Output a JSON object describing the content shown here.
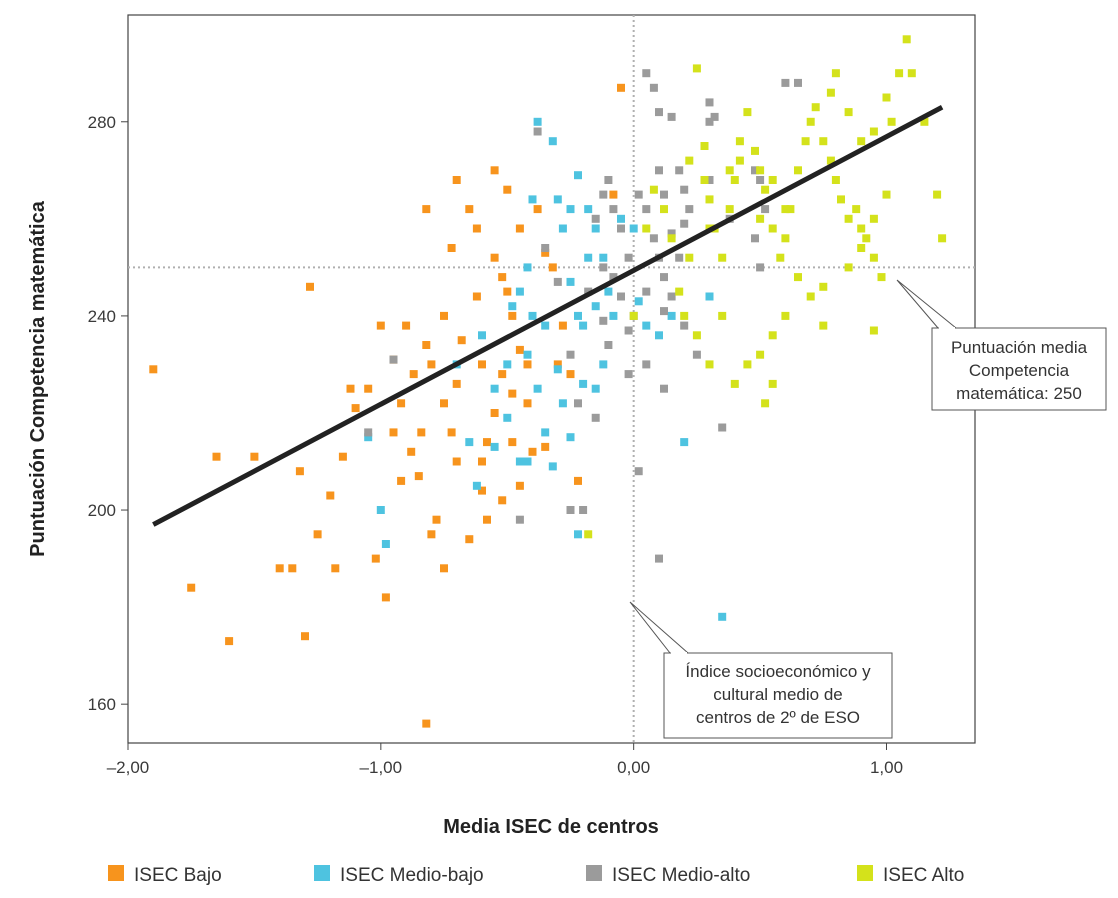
{
  "chart_data": {
    "type": "scatter",
    "xlabel": "Media ISEC de centros",
    "ylabel": "Puntuación Competencia matemática",
    "xlim": [
      -2.0,
      1.35
    ],
    "ylim": [
      152,
      302
    ],
    "x_ticks": [
      -2.0,
      -1.0,
      0.0,
      1.0
    ],
    "x_tick_labels": [
      "–2,00",
      "–1,00",
      "0,00",
      "1,00"
    ],
    "y_ticks": [
      160,
      200,
      240,
      280
    ],
    "y_tick_labels": [
      "160",
      "200",
      "240",
      "280"
    ],
    "grid": false,
    "reference_lines": {
      "x": 0.0,
      "y": 250,
      "color": "#b0b0b0",
      "style": "dotted"
    },
    "regression_line": {
      "x": [
        -1.9,
        1.22
      ],
      "y": [
        197,
        283
      ],
      "color": "#222222"
    },
    "annotations": [
      {
        "lines": [
          "Puntuación media",
          "Competencia",
          "matemática: 250"
        ],
        "points_to": [
          1.05,
          250
        ]
      },
      {
        "lines": [
          "Índice socioeconómico y",
          "cultural medio de",
          "centros de 2º de ESO"
        ],
        "points_to": [
          0.0,
          183
        ]
      }
    ],
    "legend_position": "bottom",
    "series": [
      {
        "name": "ISEC Bajo",
        "color": "#F7941D",
        "points": [
          [
            -1.9,
            229
          ],
          [
            -1.75,
            184
          ],
          [
            -1.6,
            173
          ],
          [
            -1.65,
            211
          ],
          [
            -1.5,
            211
          ],
          [
            -1.3,
            174
          ],
          [
            -1.35,
            188
          ],
          [
            -1.4,
            188
          ],
          [
            -1.28,
            246
          ],
          [
            -1.32,
            208
          ],
          [
            -1.2,
            203
          ],
          [
            -1.15,
            211
          ],
          [
            -1.1,
            221
          ],
          [
            -1.12,
            225
          ],
          [
            -1.05,
            225
          ],
          [
            -1.0,
            238
          ],
          [
            -0.95,
            231
          ],
          [
            -0.9,
            238
          ],
          [
            -0.87,
            228
          ],
          [
            -0.82,
            234
          ],
          [
            -0.8,
            230
          ],
          [
            -0.84,
            216
          ],
          [
            -0.88,
            212
          ],
          [
            -0.92,
            222
          ],
          [
            -0.95,
            216
          ],
          [
            -0.98,
            182
          ],
          [
            -1.02,
            190
          ],
          [
            -0.85,
            207
          ],
          [
            -0.82,
            262
          ],
          [
            -0.75,
            240
          ],
          [
            -0.72,
            254
          ],
          [
            -0.7,
            268
          ],
          [
            -0.65,
            262
          ],
          [
            -0.62,
            258
          ],
          [
            -0.68,
            235
          ],
          [
            -0.7,
            226
          ],
          [
            -0.72,
            216
          ],
          [
            -0.75,
            222
          ],
          [
            -0.78,
            198
          ],
          [
            -0.75,
            188
          ],
          [
            -0.8,
            195
          ],
          [
            -0.7,
            210
          ],
          [
            -0.65,
            194
          ],
          [
            -0.55,
            270
          ],
          [
            -0.5,
            266
          ],
          [
            -0.55,
            252
          ],
          [
            -0.52,
            248
          ],
          [
            -0.5,
            245
          ],
          [
            -0.48,
            240
          ],
          [
            -0.45,
            233
          ],
          [
            -0.52,
            228
          ],
          [
            -0.55,
            220
          ],
          [
            -0.58,
            214
          ],
          [
            -0.6,
            210
          ],
          [
            -0.48,
            224
          ],
          [
            -0.42,
            222
          ],
          [
            -0.4,
            212
          ],
          [
            -0.45,
            258
          ],
          [
            -0.38,
            262
          ],
          [
            -0.35,
            253
          ],
          [
            -0.32,
            250
          ],
          [
            -0.28,
            238
          ],
          [
            -0.3,
            230
          ],
          [
            -0.25,
            228
          ],
          [
            -0.22,
            206
          ],
          [
            -0.6,
            230
          ],
          [
            -0.62,
            244
          ],
          [
            -0.52,
            202
          ],
          [
            -0.48,
            214
          ],
          [
            -0.58,
            198
          ],
          [
            -0.45,
            205
          ],
          [
            -0.35,
            213
          ],
          [
            -0.42,
            230
          ],
          [
            -1.25,
            195
          ],
          [
            -1.18,
            188
          ],
          [
            -0.92,
            206
          ],
          [
            -0.6,
            204
          ],
          [
            -0.82,
            156
          ],
          [
            -0.05,
            287
          ],
          [
            -0.08,
            265
          ]
        ]
      },
      {
        "name": "ISEC Medio-bajo",
        "color": "#4EC3E0",
        "points": [
          [
            -1.0,
            200
          ],
          [
            -0.98,
            193
          ],
          [
            -1.05,
            215
          ],
          [
            -0.7,
            230
          ],
          [
            -0.65,
            214
          ],
          [
            -0.62,
            205
          ],
          [
            -0.55,
            213
          ],
          [
            -0.55,
            225
          ],
          [
            -0.5,
            230
          ],
          [
            -0.48,
            242
          ],
          [
            -0.45,
            245
          ],
          [
            -0.42,
            250
          ],
          [
            -0.4,
            264
          ],
          [
            -0.38,
            280
          ],
          [
            -0.32,
            276
          ],
          [
            -0.3,
            264
          ],
          [
            -0.28,
            258
          ],
          [
            -0.25,
            247
          ],
          [
            -0.22,
            240
          ],
          [
            -0.2,
            238
          ],
          [
            -0.15,
            242
          ],
          [
            -0.18,
            252
          ],
          [
            -0.25,
            262
          ],
          [
            -0.22,
            269
          ],
          [
            -0.18,
            262
          ],
          [
            -0.15,
            258
          ],
          [
            -0.12,
            252
          ],
          [
            -0.1,
            245
          ],
          [
            -0.08,
            240
          ],
          [
            -0.12,
            230
          ],
          [
            -0.15,
            225
          ],
          [
            -0.2,
            226
          ],
          [
            -0.25,
            215
          ],
          [
            -0.28,
            222
          ],
          [
            -0.3,
            229
          ],
          [
            -0.35,
            238
          ],
          [
            -0.4,
            240
          ],
          [
            -0.42,
            232
          ],
          [
            -0.38,
            225
          ],
          [
            -0.35,
            216
          ],
          [
            -0.32,
            209
          ],
          [
            -0.45,
            210
          ],
          [
            -0.42,
            210
          ],
          [
            -0.22,
            195
          ],
          [
            -0.05,
            260
          ],
          [
            0.0,
            258
          ],
          [
            0.02,
            243
          ],
          [
            0.05,
            238
          ],
          [
            0.1,
            236
          ],
          [
            0.15,
            240
          ],
          [
            0.2,
            214
          ],
          [
            0.35,
            178
          ],
          [
            0.3,
            244
          ],
          [
            -0.6,
            236
          ],
          [
            -0.5,
            219
          ]
        ]
      },
      {
        "name": "ISEC Medio-alto",
        "color": "#9B9B9B",
        "points": [
          [
            -1.05,
            216
          ],
          [
            -0.95,
            231
          ],
          [
            -0.45,
            198
          ],
          [
            -0.38,
            278
          ],
          [
            -0.35,
            254
          ],
          [
            -0.3,
            247
          ],
          [
            -0.25,
            232
          ],
          [
            -0.22,
            222
          ],
          [
            -0.25,
            200
          ],
          [
            -0.2,
            200
          ],
          [
            -0.15,
            219
          ],
          [
            -0.12,
            239
          ],
          [
            -0.1,
            234
          ],
          [
            -0.08,
            248
          ],
          [
            -0.05,
            244
          ],
          [
            -0.02,
            237
          ],
          [
            0.0,
            240
          ],
          [
            -0.02,
            252
          ],
          [
            -0.05,
            258
          ],
          [
            -0.08,
            262
          ],
          [
            -0.1,
            268
          ],
          [
            -0.12,
            265
          ],
          [
            -0.15,
            260
          ],
          [
            -0.12,
            250
          ],
          [
            0.02,
            265
          ],
          [
            0.05,
            262
          ],
          [
            0.08,
            256
          ],
          [
            0.1,
            252
          ],
          [
            0.12,
            248
          ],
          [
            0.15,
            257
          ],
          [
            0.1,
            270
          ],
          [
            0.12,
            265
          ],
          [
            0.08,
            287
          ],
          [
            0.05,
            290
          ],
          [
            0.1,
            282
          ],
          [
            0.15,
            281
          ],
          [
            0.18,
            270
          ],
          [
            0.2,
            266
          ],
          [
            0.22,
            262
          ],
          [
            0.18,
            252
          ],
          [
            0.15,
            244
          ],
          [
            0.12,
            241
          ],
          [
            0.2,
            238
          ],
          [
            0.25,
            232
          ],
          [
            0.3,
            284
          ],
          [
            0.32,
            281
          ],
          [
            0.35,
            217
          ],
          [
            0.1,
            190
          ],
          [
            0.02,
            208
          ],
          [
            0.05,
            230
          ],
          [
            0.12,
            225
          ],
          [
            0.2,
            259
          ],
          [
            0.3,
            268
          ],
          [
            0.38,
            260
          ],
          [
            0.48,
            270
          ],
          [
            0.5,
            268
          ],
          [
            0.52,
            262
          ],
          [
            0.48,
            256
          ],
          [
            0.5,
            250
          ],
          [
            0.3,
            280
          ],
          [
            0.6,
            288
          ],
          [
            0.65,
            288
          ],
          [
            0.05,
            245
          ],
          [
            -0.02,
            228
          ],
          [
            -0.18,
            245
          ]
        ]
      },
      {
        "name": "ISEC Alto",
        "color": "#D4E21B",
        "points": [
          [
            -0.18,
            195
          ],
          [
            0.0,
            240
          ],
          [
            0.05,
            258
          ],
          [
            0.08,
            266
          ],
          [
            0.12,
            262
          ],
          [
            0.15,
            256
          ],
          [
            0.18,
            245
          ],
          [
            0.2,
            240
          ],
          [
            0.22,
            272
          ],
          [
            0.25,
            291
          ],
          [
            0.28,
            268
          ],
          [
            0.3,
            264
          ],
          [
            0.32,
            258
          ],
          [
            0.35,
            252
          ],
          [
            0.38,
            262
          ],
          [
            0.4,
            268
          ],
          [
            0.42,
            276
          ],
          [
            0.45,
            282
          ],
          [
            0.48,
            274
          ],
          [
            0.5,
            270
          ],
          [
            0.52,
            266
          ],
          [
            0.55,
            268
          ],
          [
            0.55,
            258
          ],
          [
            0.58,
            252
          ],
          [
            0.6,
            256
          ],
          [
            0.62,
            262
          ],
          [
            0.65,
            270
          ],
          [
            0.68,
            276
          ],
          [
            0.7,
            280
          ],
          [
            0.72,
            283
          ],
          [
            0.75,
            276
          ],
          [
            0.78,
            272
          ],
          [
            0.8,
            268
          ],
          [
            0.82,
            264
          ],
          [
            0.85,
            260
          ],
          [
            0.88,
            262
          ],
          [
            0.9,
            258
          ],
          [
            0.92,
            256
          ],
          [
            0.95,
            252
          ],
          [
            0.98,
            248
          ],
          [
            0.78,
            286
          ],
          [
            0.8,
            290
          ],
          [
            0.85,
            282
          ],
          [
            0.9,
            276
          ],
          [
            0.95,
            278
          ],
          [
            1.0,
            285
          ],
          [
            1.02,
            280
          ],
          [
            1.05,
            290
          ],
          [
            1.08,
            297
          ],
          [
            1.1,
            290
          ],
          [
            1.15,
            280
          ],
          [
            1.2,
            265
          ],
          [
            1.22,
            256
          ],
          [
            1.0,
            265
          ],
          [
            0.95,
            260
          ],
          [
            0.9,
            254
          ],
          [
            0.85,
            250
          ],
          [
            0.75,
            246
          ],
          [
            0.7,
            244
          ],
          [
            0.65,
            248
          ],
          [
            0.6,
            240
          ],
          [
            0.55,
            236
          ],
          [
            0.5,
            232
          ],
          [
            0.45,
            230
          ],
          [
            0.4,
            226
          ],
          [
            0.35,
            240
          ],
          [
            0.3,
            230
          ],
          [
            0.25,
            236
          ],
          [
            0.52,
            222
          ],
          [
            0.55,
            226
          ],
          [
            0.75,
            238
          ],
          [
            0.95,
            237
          ],
          [
            0.6,
            262
          ],
          [
            0.5,
            260
          ],
          [
            0.42,
            272
          ],
          [
            0.38,
            270
          ],
          [
            0.28,
            275
          ],
          [
            0.3,
            258
          ],
          [
            0.22,
            252
          ]
        ]
      }
    ]
  }
}
